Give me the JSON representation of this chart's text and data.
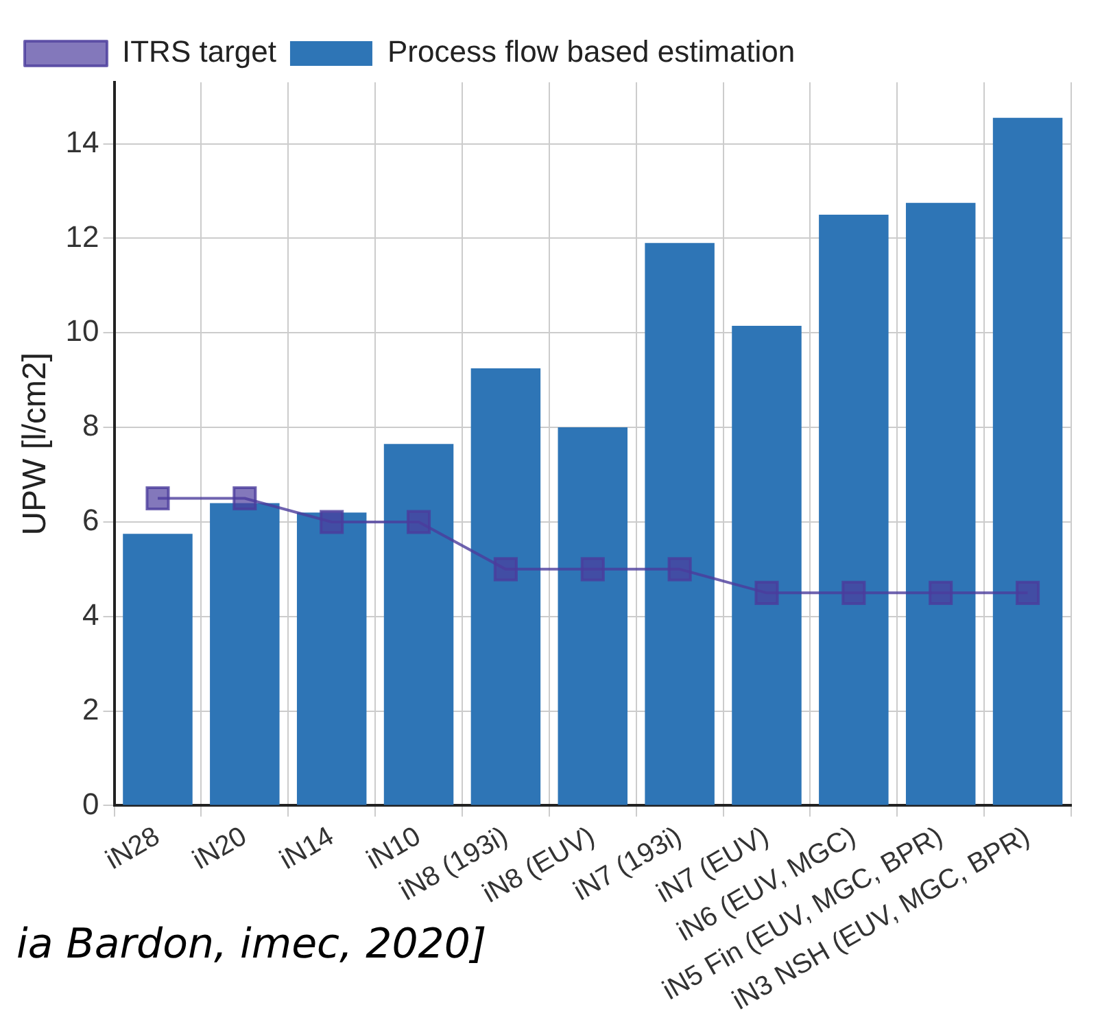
{
  "chart_data": {
    "type": "bar",
    "ylabel": "UPW [l/cm2]",
    "categories": [
      "iN28",
      "iN20",
      "iN14",
      "iN10",
      "iN8 (193i)",
      "iN8 (EUV)",
      "iN7 (193i)",
      "iN7 (EUV)",
      "iN6 (EUV, MGC)",
      "iN5 Fin (EUV, MGC, BPR)",
      "iN3 NSH (EUV, MGC, BPR)"
    ],
    "series": [
      {
        "name": "ITRS target",
        "type": "line",
        "color": "#4b3c9c",
        "values": [
          6.5,
          6.5,
          6,
          6,
          5,
          5,
          5,
          4.5,
          4.5,
          4.5,
          4.5
        ]
      },
      {
        "name": "Process flow based estimation",
        "color": "#2e75b6",
        "values": [
          5.75,
          6.4,
          6.2,
          7.65,
          9.25,
          8.0,
          11.9,
          10.15,
          12.5,
          12.75,
          14.55
        ]
      }
    ],
    "ylim": [
      0,
      15.3
    ],
    "yticks": [
      0,
      2,
      4,
      6,
      8,
      10,
      12,
      14
    ],
    "grid": true,
    "legend": "top left",
    "marker": "square",
    "line_style": "solid",
    "annotations": [
      "ia Bardon, imec, 2020]"
    ]
  }
}
